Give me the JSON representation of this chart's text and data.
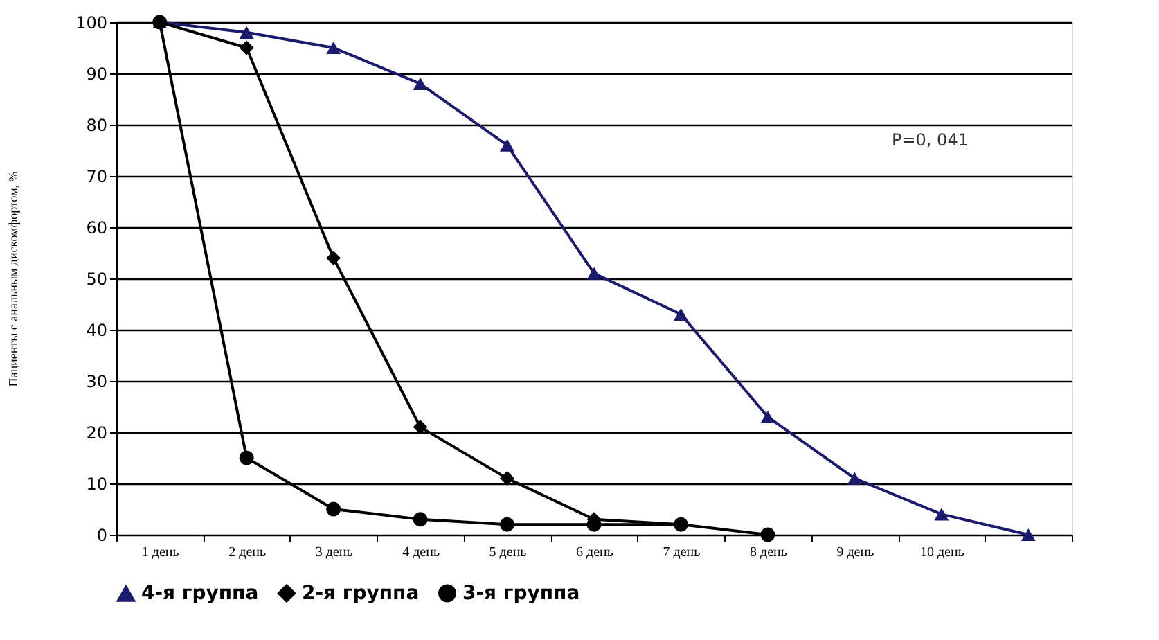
{
  "chart_data": {
    "type": "line",
    "ylabel": "Пациенты с анальным дискомфортом, %",
    "categories": [
      "1 день",
      "2 день",
      "3 день",
      "4 день",
      "5 день",
      "6 день",
      "7 день",
      "8 день",
      "9 день",
      "10 день",
      null
    ],
    "series": [
      {
        "name": "4-я группа",
        "color": "#1a1a6e",
        "marker": "triangle",
        "values": [
          100,
          98,
          95,
          88,
          76,
          51,
          43,
          23,
          11,
          4,
          0
        ]
      },
      {
        "name": "2-я группа",
        "color": "#000000",
        "marker": "diamond",
        "values": [
          100,
          95,
          54,
          21,
          11,
          3,
          2,
          null,
          null,
          null,
          null
        ]
      },
      {
        "name": "3-я группа",
        "color": "#000000",
        "marker": "circle",
        "values": [
          100,
          15,
          5,
          3,
          2,
          2,
          2,
          0,
          null,
          null,
          null
        ]
      }
    ],
    "ylim": [
      0,
      100
    ],
    "yticks": [
      0,
      10,
      20,
      30,
      40,
      50,
      60,
      70,
      80,
      90,
      100
    ],
    "grid": "y",
    "legend": "bottom",
    "line_style": "solid",
    "annotations": [
      "P=0, 041"
    ]
  }
}
